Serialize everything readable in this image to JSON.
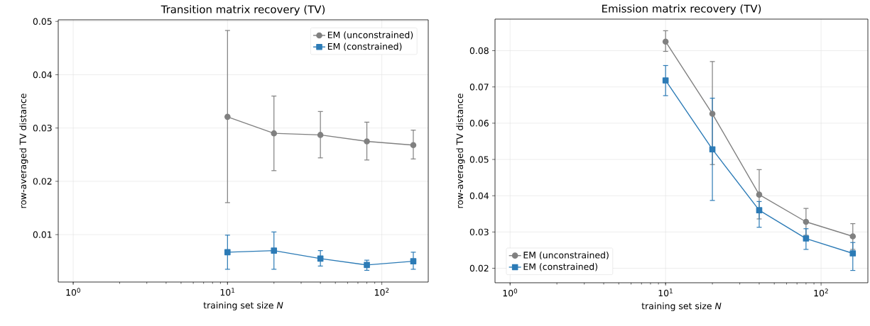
{
  "chart_data": [
    {
      "type": "line",
      "title": "Transition matrix recovery (TV)",
      "xlabel": "training set size *N*",
      "ylabel": "row-averaged TV distance",
      "log": "x",
      "grid": true,
      "legend": "top right",
      "xlim": [
        0.8,
        200
      ],
      "ylim": [
        0.0011,
        0.0503
      ],
      "xticks": [
        {
          "value": 1,
          "label": "10$^{0}$"
        },
        {
          "value": 10,
          "label": "10$^{1}$"
        },
        {
          "value": 100,
          "label": "10$^{2}$"
        }
      ],
      "yticks": [
        0.01,
        0.02,
        0.03,
        0.04,
        0.05
      ],
      "x": [
        10,
        20,
        40,
        80,
        160
      ],
      "series": [
        {
          "name": "EM (unconstrained)",
          "color": "#808080",
          "marker": "circle",
          "values": [
            0.0321,
            0.029,
            0.0287,
            0.0275,
            0.0268
          ],
          "errors": [
            [
              0.016,
              0.0483
            ],
            [
              0.022,
              0.036
            ],
            [
              0.0244,
              0.0331
            ],
            [
              0.024,
              0.0311
            ],
            [
              0.0242,
              0.0296
            ]
          ]
        },
        {
          "name": "EM (constrained)",
          "color": "#2c7bb6",
          "marker": "square",
          "values": [
            0.0067,
            0.007,
            0.0055,
            0.0043,
            0.005
          ],
          "errors": [
            [
              0.0035,
              0.0099
            ],
            [
              0.0035,
              0.0105
            ],
            [
              0.0041,
              0.007
            ],
            [
              0.0033,
              0.0052
            ],
            [
              0.0035,
              0.0067
            ]
          ]
        }
      ]
    },
    {
      "type": "line",
      "title": "Emission matrix recovery (TV)",
      "xlabel": "training set size *N*",
      "ylabel": "row-averaged TV distance",
      "log": "x",
      "grid": true,
      "legend": "bottom left",
      "xlim": [
        0.8,
        200
      ],
      "ylim": [
        0.016,
        0.0887
      ],
      "xticks": [
        {
          "value": 1,
          "label": "10$^{0}$"
        },
        {
          "value": 10,
          "label": "10$^{1}$"
        },
        {
          "value": 100,
          "label": "10$^{2}$"
        }
      ],
      "yticks": [
        0.02,
        0.03,
        0.04,
        0.05,
        0.06,
        0.07,
        0.08
      ],
      "x": [
        10,
        20,
        40,
        80,
        160
      ],
      "series": [
        {
          "name": "EM (unconstrained)",
          "color": "#808080",
          "marker": "circle",
          "values": [
            0.0825,
            0.0626,
            0.0403,
            0.0328,
            0.0288
          ],
          "errors": [
            [
              0.0798,
              0.0855
            ],
            [
              0.0486,
              0.077
            ],
            [
              0.0336,
              0.0472
            ],
            [
              0.0291,
              0.0365
            ],
            [
              0.0252,
              0.0323
            ]
          ]
        },
        {
          "name": "EM (constrained)",
          "color": "#2c7bb6",
          "marker": "square",
          "values": [
            0.0718,
            0.0528,
            0.036,
            0.0282,
            0.0241
          ],
          "errors": [
            [
              0.0676,
              0.0759
            ],
            [
              0.0387,
              0.0669
            ],
            [
              0.0313,
              0.0384
            ],
            [
              0.0252,
              0.0309
            ],
            [
              0.0194,
              0.0271
            ]
          ]
        }
      ]
    }
  ]
}
